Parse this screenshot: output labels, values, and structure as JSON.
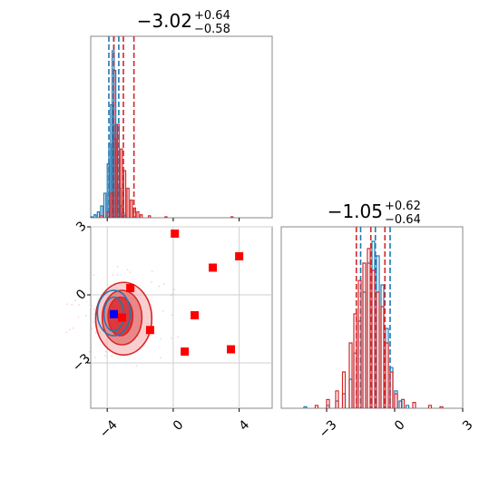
{
  "chart_data": [
    {
      "type": "histogram",
      "panel": "marginal-x",
      "title": {
        "value": "−3.02",
        "plus": "+0.64",
        "minus": "−0.58"
      },
      "xlim": [
        -5,
        6
      ],
      "series": [
        {
          "color": "#1f77b4",
          "bins": [
            [
              -5.0,
              1
            ],
            [
              -4.8,
              3
            ],
            [
              -4.6,
              6
            ],
            [
              -4.4,
              12
            ],
            [
              -4.2,
              25
            ],
            [
              -4.0,
              55
            ],
            [
              -3.9,
              75
            ],
            [
              -3.8,
              115
            ],
            [
              -3.7,
              170
            ],
            [
              -3.6,
              150
            ],
            [
              -3.5,
              95
            ],
            [
              -3.4,
              60
            ],
            [
              -3.3,
              30
            ],
            [
              -3.2,
              12
            ],
            [
              -3.1,
              5
            ],
            [
              -3.0,
              2
            ]
          ],
          "quantile_lines": [
            -3.9,
            -3.6,
            -3.3
          ]
        },
        {
          "color": "#d62728",
          "bins": [
            [
              -4.4,
              2
            ],
            [
              -4.0,
              6
            ],
            [
              -3.8,
              25
            ],
            [
              -3.6,
              80
            ],
            [
              -3.4,
              95
            ],
            [
              -3.2,
              70
            ],
            [
              -3.0,
              48
            ],
            [
              -2.8,
              30
            ],
            [
              -2.6,
              18
            ],
            [
              -2.4,
              10
            ],
            [
              -2.2,
              6
            ],
            [
              -2.0,
              3
            ],
            [
              -1.5,
              2
            ],
            [
              -0.5,
              1
            ],
            [
              3.5,
              1
            ]
          ],
          "quantile_lines": [
            -3.6,
            -3.02,
            -2.38
          ]
        }
      ]
    },
    {
      "type": "histogram",
      "panel": "marginal-y",
      "title": {
        "value": "−1.05",
        "plus": "+0.62",
        "minus": "−0.64"
      },
      "xlim": [
        -5,
        3
      ],
      "series": [
        {
          "color": "#1f77b4",
          "bins": [
            [
              -4.0,
              1
            ],
            [
              -3.0,
              2
            ],
            [
              -2.6,
              5
            ],
            [
              -2.3,
              10
            ],
            [
              -2.0,
              20
            ],
            [
              -1.8,
              38
            ],
            [
              -1.6,
              60
            ],
            [
              -1.4,
              80
            ],
            [
              -1.2,
              100
            ],
            [
              -1.0,
              115
            ],
            [
              -0.8,
              105
            ],
            [
              -0.6,
              85
            ],
            [
              -0.4,
              55
            ],
            [
              -0.2,
              28
            ],
            [
              0.0,
              12
            ],
            [
              0.2,
              5
            ],
            [
              0.5,
              2
            ]
          ],
          "quantile_lines": [
            -1.5,
            -0.85,
            -0.2
          ]
        },
        {
          "color": "#d62728",
          "bins": [
            [
              -3.5,
              2
            ],
            [
              -3.0,
              6
            ],
            [
              -2.6,
              12
            ],
            [
              -2.3,
              25
            ],
            [
              -2.0,
              45
            ],
            [
              -1.8,
              65
            ],
            [
              -1.6,
              88
            ],
            [
              -1.4,
              100
            ],
            [
              -1.2,
              110
            ],
            [
              -1.0,
              95
            ],
            [
              -0.8,
              80
            ],
            [
              -0.6,
              70
            ],
            [
              -0.4,
              45
            ],
            [
              -0.2,
              25
            ],
            [
              0.0,
              10
            ],
            [
              0.3,
              6
            ],
            [
              0.8,
              4
            ],
            [
              1.5,
              2
            ],
            [
              2.0,
              1
            ]
          ],
          "quantile_lines": [
            -1.69,
            -1.05,
            -0.43
          ]
        }
      ]
    },
    {
      "type": "scatter",
      "panel": "joint",
      "xlim": [
        -5,
        6
      ],
      "ylim": [
        -5,
        3
      ],
      "x_ticks": [
        -4,
        0,
        4
      ],
      "x_tick_labels": [
        "−4",
        "0",
        "4"
      ],
      "y_ticks": [
        3,
        0,
        -3
      ],
      "y_tick_labels": [
        "3",
        "0",
        "−3"
      ],
      "contours": [
        {
          "color": "#d62728",
          "fill": "#f4a6a6",
          "cx": -3.0,
          "cy": -1.05,
          "rx": 1.7,
          "ry": 1.6,
          "opacity": 0.55
        },
        {
          "color": "#d62728",
          "fill": "#e36b6b",
          "cx": -3.1,
          "cy": -1.0,
          "rx": 1.2,
          "ry": 1.2,
          "opacity": 0.7
        },
        {
          "color": "#d62728",
          "fill": "#d62728",
          "cx": -3.2,
          "cy": -0.95,
          "rx": 0.75,
          "ry": 0.85,
          "opacity": 0.8
        },
        {
          "color": "#1f77b4",
          "fill": "none",
          "cx": -3.6,
          "cy": -0.8,
          "rx": 1.0,
          "ry": 1.0,
          "opacity": 1
        },
        {
          "color": "#1f77b4",
          "fill": "none",
          "cx": -3.6,
          "cy": -0.85,
          "rx": 0.6,
          "ry": 0.75,
          "opacity": 1
        }
      ],
      "markers": [
        {
          "x": 0.1,
          "y": 2.7,
          "color": "#ff0000"
        },
        {
          "x": 4.0,
          "y": 1.7,
          "color": "#ff0000"
        },
        {
          "x": 2.4,
          "y": 1.2,
          "color": "#ff0000"
        },
        {
          "x": -2.6,
          "y": 0.3,
          "color": "#ff0000"
        },
        {
          "x": 1.3,
          "y": -0.9,
          "color": "#ff0000"
        },
        {
          "x": -3.1,
          "y": -1.0,
          "color": "#ff0000"
        },
        {
          "x": -1.4,
          "y": -1.55,
          "color": "#ff0000"
        },
        {
          "x": 0.7,
          "y": -2.5,
          "color": "#ff0000"
        },
        {
          "x": 3.5,
          "y": -2.4,
          "color": "#ff0000"
        },
        {
          "x": -3.6,
          "y": -0.85,
          "color": "#0000ff"
        }
      ]
    }
  ],
  "marginal_y_ticks": {
    "values": [
      -3,
      0,
      3
    ],
    "labels": [
      "−3",
      "0",
      "3"
    ]
  }
}
